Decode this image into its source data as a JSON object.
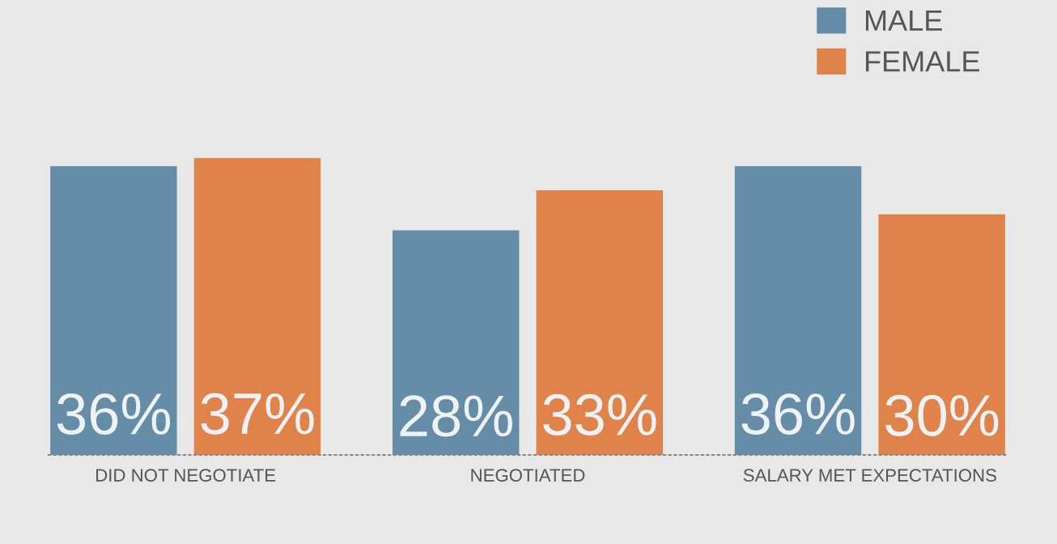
{
  "chart_data": {
    "type": "bar",
    "categories": [
      "DID NOT NEGOTIATE",
      "NEGOTIATED",
      "SALARY MET EXPECTATIONS"
    ],
    "series": [
      {
        "name": "MALE",
        "color": "#668da8",
        "values": [
          36,
          28,
          36
        ],
        "value_labels": [
          "36%",
          "28%",
          "36%"
        ]
      },
      {
        "name": "FEMALE",
        "color": "#e0834a",
        "values": [
          37,
          33,
          30
        ],
        "value_labels": [
          "37%",
          "33%",
          "30%"
        ]
      }
    ],
    "legend": "top right",
    "grid": false
  }
}
